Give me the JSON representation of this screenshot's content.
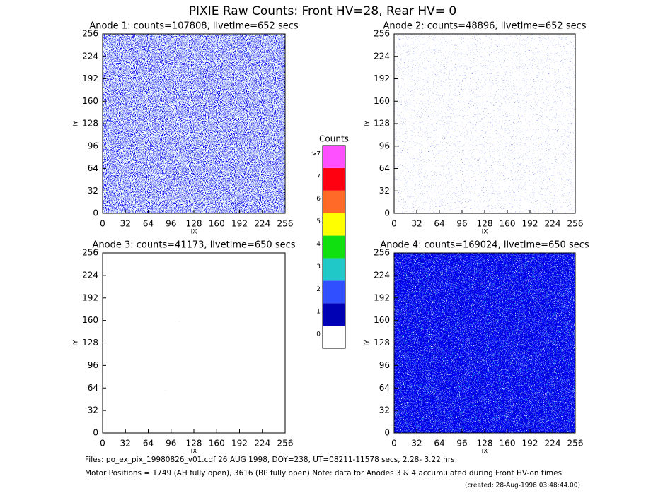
{
  "title": "PIXIE Raw Counts:  Front HV=28, Rear HV= 0",
  "chart_data": [
    {
      "type": "heatmap",
      "title": "Anode 1: counts=107808, livetime=652 secs",
      "xlabel": "IX",
      "ylabel": "IY",
      "xlim": [
        0,
        256
      ],
      "ylim": [
        0,
        256
      ],
      "xticks": [
        0,
        32,
        64,
        96,
        128,
        160,
        192,
        224,
        256
      ],
      "yticks": [
        0,
        32,
        64,
        96,
        128,
        160,
        192,
        224,
        256
      ]
    },
    {
      "type": "heatmap",
      "title": "Anode 2: counts=48896, livetime=652 secs",
      "xlabel": "IX",
      "ylabel": "IY",
      "xlim": [
        0,
        256
      ],
      "ylim": [
        0,
        256
      ],
      "xticks": [
        0,
        32,
        64,
        96,
        128,
        160,
        192,
        224,
        256
      ],
      "yticks": [
        0,
        32,
        64,
        96,
        128,
        160,
        192,
        224,
        256
      ]
    },
    {
      "type": "heatmap",
      "title": "Anode 3: counts=41173, livetime=650 secs",
      "xlabel": "IX",
      "ylabel": "IY",
      "xlim": [
        0,
        256
      ],
      "ylim": [
        0,
        256
      ],
      "xticks": [
        0,
        32,
        64,
        96,
        128,
        160,
        192,
        224,
        256
      ],
      "yticks": [
        0,
        32,
        64,
        96,
        128,
        160,
        192,
        224,
        256
      ]
    },
    {
      "type": "heatmap",
      "title": "Anode 4: counts=169024, livetime=650 secs",
      "xlabel": "IX",
      "ylabel": "IY",
      "xlim": [
        0,
        256
      ],
      "ylim": [
        0,
        256
      ],
      "xticks": [
        0,
        32,
        64,
        96,
        128,
        160,
        192,
        224,
        256
      ],
      "yticks": [
        0,
        32,
        64,
        96,
        128,
        160,
        192,
        224,
        256
      ]
    }
  ],
  "colorbar": {
    "title": "Counts",
    "categories": [
      "0",
      "1",
      "2",
      "3",
      "4",
      "5",
      "6",
      "7",
      ">7"
    ],
    "colors": [
      "#ffffff",
      "#0000b4",
      "#3050ff",
      "#20c8c8",
      "#10e010",
      "#ffff00",
      "#ff6a28",
      "#ff0010",
      "#ff50ff"
    ]
  },
  "footer": {
    "files": "Files: po_ex_pix_19980826_v01.cdf    26 AUG 1998, DOY=238, UT=08211-11578 secs,  2.28- 3.22 hrs",
    "motor": "Motor Positions = 1749 (AH fully open), 3616 (BP fully open)    Note: data for Anodes 3 & 4 accumulated during Front HV-on times",
    "created": "(created: 28-Aug-1998 03:48:44.00)"
  }
}
